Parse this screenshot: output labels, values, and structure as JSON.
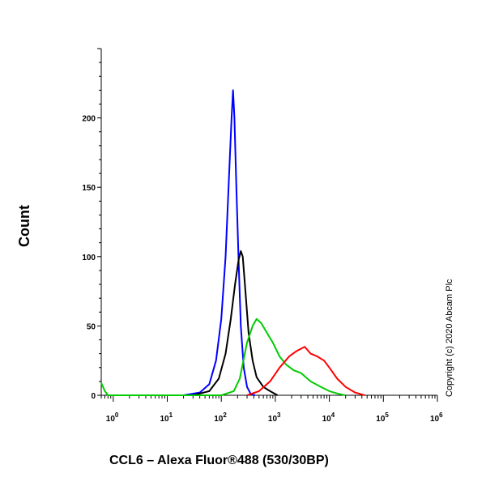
{
  "chart_data": {
    "type": "line",
    "title": "",
    "xlabel": "CCL6 – Alexa Fluor®488 (530/30BP)",
    "ylabel": "Count",
    "xscale": "log",
    "xlim": [
      0.6,
      1000000
    ],
    "ylim": [
      0,
      250
    ],
    "x_ticks": [
      {
        "value": 1,
        "base": "10",
        "exp": "0"
      },
      {
        "value": 10,
        "base": "10",
        "exp": "1"
      },
      {
        "value": 100,
        "base": "10",
        "exp": "2"
      },
      {
        "value": 1000,
        "base": "10",
        "exp": "3"
      },
      {
        "value": 10000,
        "base": "10",
        "exp": "4"
      },
      {
        "value": 100000,
        "base": "10",
        "exp": "5"
      },
      {
        "value": 1000000,
        "base": "10",
        "exp": "6"
      }
    ],
    "y_ticks": [
      {
        "value": 0,
        "label": "0"
      },
      {
        "value": 50,
        "label": "50"
      },
      {
        "value": 100,
        "label": "100"
      },
      {
        "value": 150,
        "label": "150"
      },
      {
        "value": 200,
        "label": "200"
      }
    ],
    "grid": false,
    "legend": "none",
    "series": [
      {
        "color": "#0000ff",
        "points": [
          [
            20,
            0
          ],
          [
            40,
            2
          ],
          [
            60,
            8
          ],
          [
            80,
            25
          ],
          [
            100,
            55
          ],
          [
            120,
            100
          ],
          [
            140,
            160
          ],
          [
            155,
            200
          ],
          [
            165,
            220
          ],
          [
            175,
            200
          ],
          [
            190,
            150
          ],
          [
            210,
            95
          ],
          [
            230,
            50
          ],
          [
            260,
            20
          ],
          [
            300,
            6
          ],
          [
            350,
            1
          ],
          [
            420,
            0
          ]
        ]
      },
      {
        "color": "#000000",
        "points": [
          [
            30,
            0
          ],
          [
            60,
            3
          ],
          [
            90,
            12
          ],
          [
            120,
            30
          ],
          [
            150,
            55
          ],
          [
            180,
            80
          ],
          [
            210,
            98
          ],
          [
            230,
            104
          ],
          [
            250,
            100
          ],
          [
            280,
            75
          ],
          [
            320,
            45
          ],
          [
            380,
            25
          ],
          [
            450,
            13
          ],
          [
            600,
            6
          ],
          [
            800,
            3
          ],
          [
            1100,
            0
          ]
        ]
      },
      {
        "color": "#00cc00",
        "points": [
          [
            0.6,
            9
          ],
          [
            0.7,
            3
          ],
          [
            0.8,
            0
          ],
          [
            1,
            0
          ],
          [
            100,
            0
          ],
          [
            170,
            3
          ],
          [
            220,
            12
          ],
          [
            300,
            38
          ],
          [
            380,
            50
          ],
          [
            450,
            55
          ],
          [
            550,
            52
          ],
          [
            700,
            45
          ],
          [
            900,
            38
          ],
          [
            1200,
            28
          ],
          [
            1600,
            22
          ],
          [
            2200,
            18
          ],
          [
            3000,
            16
          ],
          [
            4500,
            10
          ],
          [
            7000,
            6
          ],
          [
            10000,
            3
          ],
          [
            15000,
            1
          ],
          [
            20000,
            0
          ]
        ]
      },
      {
        "color": "#ff0000",
        "points": [
          [
            300,
            0
          ],
          [
            500,
            3
          ],
          [
            800,
            10
          ],
          [
            1200,
            20
          ],
          [
            1800,
            28
          ],
          [
            2500,
            32
          ],
          [
            3500,
            35
          ],
          [
            4500,
            30
          ],
          [
            6000,
            28
          ],
          [
            8000,
            25
          ],
          [
            10000,
            20
          ],
          [
            14000,
            12
          ],
          [
            20000,
            6
          ],
          [
            30000,
            2
          ],
          [
            45000,
            0
          ]
        ]
      }
    ]
  },
  "side_text": "Copyright (c) 2020 Abcam Plc"
}
